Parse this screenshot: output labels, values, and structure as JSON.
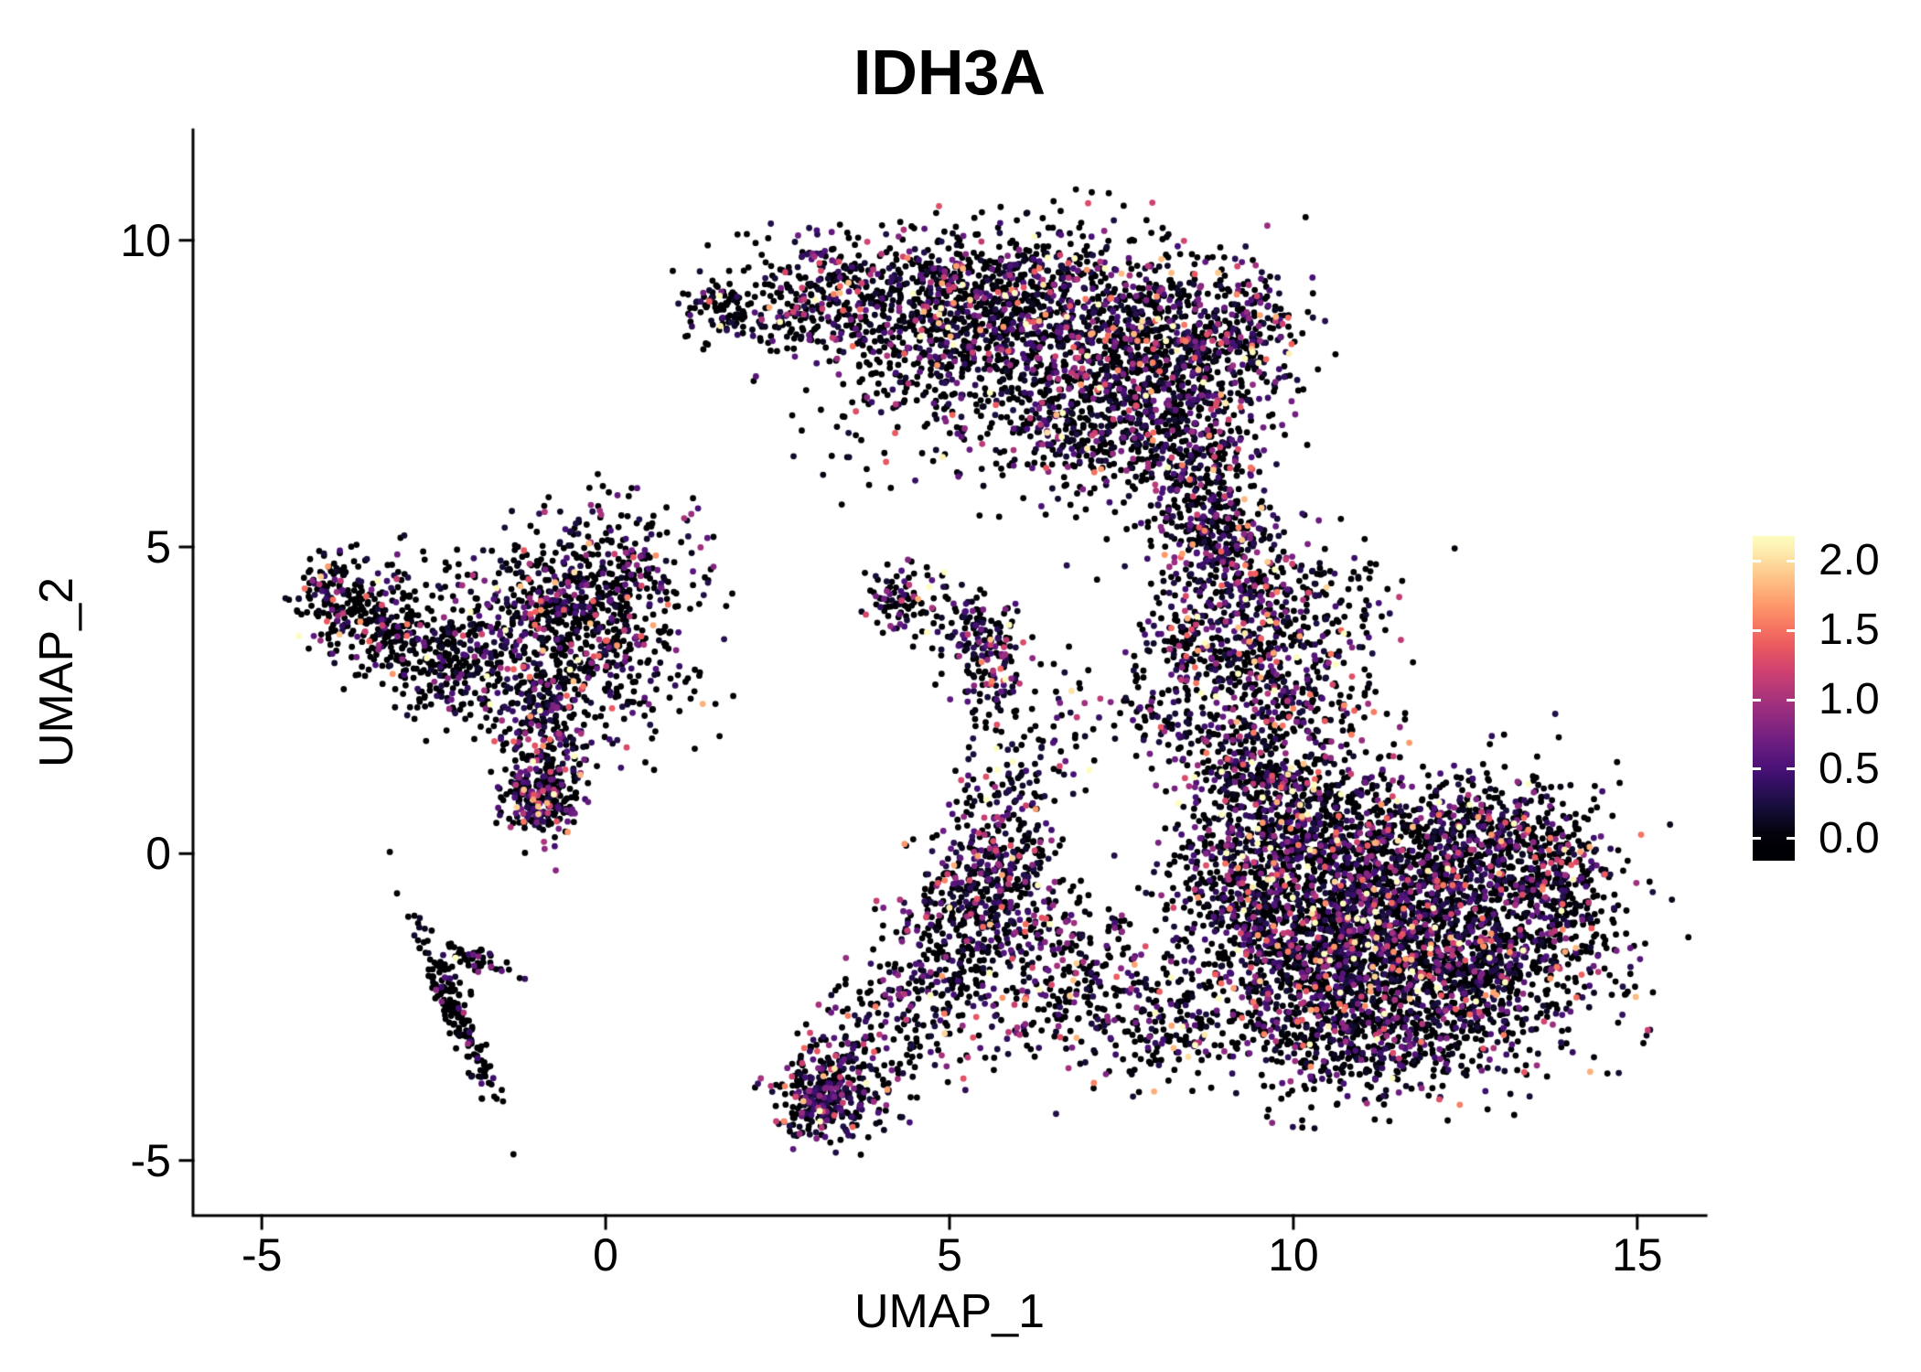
{
  "chart_data": {
    "type": "scatter",
    "title": "IDH3A",
    "xlabel": "UMAP_1",
    "ylabel": "UMAP_2",
    "xlim": [
      -6,
      16
    ],
    "ylim": [
      -5.9,
      11.8
    ],
    "grid": false,
    "background": "#ffffff",
    "axis_color": "#000000",
    "text_color": "#000000",
    "x_ticks": {
      "values": [
        -5,
        0,
        5,
        10,
        15
      ],
      "labels": [
        "-5",
        "0",
        "5",
        "10",
        "15"
      ]
    },
    "y_ticks": {
      "values": [
        -5,
        0,
        5,
        10
      ],
      "labels": [
        "-5",
        "0",
        "5",
        "10"
      ]
    },
    "legend_position": "right",
    "colorbar": {
      "labels": [
        "2.0",
        "1.5",
        "1.0",
        "0.5",
        "0.0"
      ],
      "label_values": [
        2.0,
        1.5,
        1.0,
        0.5,
        0.0
      ],
      "bar_domain": [
        -0.16,
        2.18
      ],
      "value_min": 0,
      "value_max": 2.15,
      "colormap_name": "magma",
      "colormap": [
        "#000004",
        "#180f3d",
        "#440f76",
        "#721f81",
        "#9e2f7f",
        "#cd4071",
        "#f1605d",
        "#fd9668",
        "#feca8d",
        "#fcfdbf"
      ]
    },
    "points": {
      "total": 13790,
      "radius_px": 3.4,
      "seed": 42,
      "value_distribution": {
        "zero_default": 0.55,
        "exp_scale": 0.55
      },
      "clusters": [
        {
          "name": "crescent-left-arm",
          "cx": 3.9,
          "cy": 9.2,
          "sx": 1.1,
          "sy": 0.5,
          "n": 450,
          "zf": 0.6
        },
        {
          "name": "crescent-left-tip",
          "cx": 1.45,
          "cy": 8.85,
          "sx": 0.3,
          "sy": 0.2,
          "n": 45,
          "zf": 0.6
        },
        {
          "name": "crescent-upper-left",
          "cx": 2.4,
          "cy": 8.9,
          "sx": 0.55,
          "sy": 0.35,
          "n": 90,
          "zf": 0.65
        },
        {
          "name": "crescent-core",
          "cx": 6.2,
          "cy": 8.7,
          "sx": 1.2,
          "sy": 0.75,
          "n": 1100,
          "zf": 0.52
        },
        {
          "name": "crescent-right",
          "cx": 8.2,
          "cy": 8.1,
          "sx": 0.8,
          "sy": 0.8,
          "n": 650,
          "zf": 0.52
        },
        {
          "name": "crescent-lower",
          "cx": 7.2,
          "cy": 7.0,
          "sx": 0.9,
          "sy": 0.65,
          "n": 480,
          "zf": 0.5
        },
        {
          "name": "crescent-lower-tail",
          "cx": 8.7,
          "cy": 6.1,
          "sx": 0.5,
          "sy": 0.75,
          "n": 280,
          "zf": 0.5
        },
        {
          "name": "crescent-right-tip",
          "cx": 9.35,
          "cy": 8.5,
          "sx": 0.35,
          "sy": 0.45,
          "n": 140,
          "zf": 0.55
        },
        {
          "name": "crescent-under-fringe",
          "cx": 4.6,
          "cy": 8.0,
          "sx": 1.1,
          "sy": 0.7,
          "n": 160,
          "zf": 0.62
        },
        {
          "name": "crescent-stray-below",
          "cx": 4.3,
          "cy": 7.0,
          "sx": 0.9,
          "sy": 0.55,
          "n": 45,
          "zf": 0.7
        },
        {
          "name": "band-upper",
          "cx": 8.8,
          "cy": 5.3,
          "sx": 0.4,
          "sy": 0.5,
          "n": 130,
          "zf": 0.5
        },
        {
          "name": "band-mid",
          "cx": 9.2,
          "cy": 4.4,
          "sx": 0.5,
          "sy": 0.75,
          "n": 280,
          "zf": 0.45
        },
        {
          "name": "band-lower",
          "cx": 9.4,
          "cy": 2.9,
          "sx": 0.55,
          "sy": 0.75,
          "n": 300,
          "zf": 0.45
        },
        {
          "name": "band-left-bump",
          "cx": 8.35,
          "cy": 3.4,
          "sx": 0.3,
          "sy": 0.45,
          "n": 90,
          "zf": 0.5
        },
        {
          "name": "band-left-low",
          "cx": 8.1,
          "cy": 2.2,
          "sx": 0.35,
          "sy": 0.4,
          "n": 70,
          "zf": 0.5
        },
        {
          "name": "band-right-fringe",
          "cx": 10.1,
          "cy": 3.6,
          "sx": 0.4,
          "sy": 0.7,
          "n": 120,
          "zf": 0.55
        },
        {
          "name": "band-right-sparse",
          "cx": 10.8,
          "cy": 4.2,
          "sx": 0.5,
          "sy": 0.6,
          "n": 50,
          "zf": 0.6
        },
        {
          "name": "band-right-low-sparse",
          "cx": 10.5,
          "cy": 2.2,
          "sx": 0.6,
          "sy": 0.6,
          "n": 80,
          "zf": 0.55
        },
        {
          "name": "blob-core",
          "cx": 11.4,
          "cy": -0.5,
          "sx": 1.2,
          "sy": 0.85,
          "n": 1400,
          "zf": 0.55
        },
        {
          "name": "blob-lower",
          "cx": 12.2,
          "cy": -2.0,
          "sx": 1.1,
          "sy": 0.75,
          "n": 1100,
          "zf": 0.55
        },
        {
          "name": "blob-left",
          "cx": 10.2,
          "cy": -1.6,
          "sx": 0.8,
          "sy": 0.85,
          "n": 750,
          "zf": 0.55
        },
        {
          "name": "blob-upper-left",
          "cx": 10.0,
          "cy": 0.5,
          "sx": 0.75,
          "sy": 0.6,
          "n": 450,
          "zf": 0.5
        },
        {
          "name": "blob-right-edge",
          "cx": 13.8,
          "cy": -0.6,
          "sx": 0.5,
          "sy": 0.8,
          "n": 300,
          "zf": 0.6
        },
        {
          "name": "blob-bottom",
          "cx": 11.0,
          "cy": -3.1,
          "sx": 0.8,
          "sy": 0.45,
          "n": 300,
          "zf": 0.55
        },
        {
          "name": "blob-top-neck",
          "cx": 9.4,
          "cy": 1.4,
          "sx": 0.5,
          "sy": 0.55,
          "n": 220,
          "zf": 0.5
        },
        {
          "name": "blob-upper-right",
          "cx": 12.9,
          "cy": 0.3,
          "sx": 0.6,
          "sy": 0.5,
          "n": 250,
          "zf": 0.55
        },
        {
          "name": "blob-left-edge",
          "cx": 9.2,
          "cy": -0.6,
          "sx": 0.5,
          "sy": 0.8,
          "n": 250,
          "zf": 0.55
        },
        {
          "name": "left-band-top",
          "cx": -0.3,
          "cy": 4.35,
          "sx": 0.85,
          "sy": 0.45,
          "n": 420,
          "zf": 0.55
        },
        {
          "name": "left-mid",
          "cx": -0.7,
          "cy": 3.4,
          "sx": 0.7,
          "sy": 0.55,
          "n": 330,
          "zf": 0.6
        },
        {
          "name": "left-west-clump",
          "cx": -3.3,
          "cy": 3.9,
          "sx": 0.5,
          "sy": 0.45,
          "n": 260,
          "zf": 0.72
        },
        {
          "name": "left-west-tip",
          "cx": -4.0,
          "cy": 4.3,
          "sx": 0.25,
          "sy": 0.3,
          "n": 70,
          "zf": 0.6
        },
        {
          "name": "left-dark-clump",
          "cx": -2.4,
          "cy": 3.15,
          "sx": 0.45,
          "sy": 0.4,
          "n": 200,
          "zf": 0.75
        },
        {
          "name": "left-tail",
          "cx": -0.85,
          "cy": 1.7,
          "sx": 0.3,
          "sy": 0.7,
          "n": 260,
          "zf": 0.45
        },
        {
          "name": "left-tail-knob",
          "cx": -0.95,
          "cy": 0.95,
          "sx": 0.28,
          "sy": 0.28,
          "n": 160,
          "zf": 0.45
        },
        {
          "name": "left-inner-sparse",
          "cx": 0.3,
          "cy": 2.8,
          "sx": 0.7,
          "sy": 0.6,
          "n": 120,
          "zf": 0.6
        },
        {
          "name": "left-between",
          "cx": -1.6,
          "cy": 2.5,
          "sx": 0.5,
          "sy": 0.5,
          "n": 90,
          "zf": 0.62
        },
        {
          "name": "left-top-sparse",
          "cx": 0.2,
          "cy": 5.4,
          "sx": 0.55,
          "sy": 0.35,
          "n": 50,
          "zf": 0.6
        },
        {
          "name": "streak-main",
          "cx": -2.2,
          "cy": -2.5,
          "sx": 0.8,
          "sy": 0.1,
          "rot": -69,
          "n": 170,
          "zf": 0.85
        },
        {
          "name": "streak-fork",
          "cx": -1.9,
          "cy": -1.7,
          "sx": 0.3,
          "sy": 0.09,
          "rot": -25,
          "n": 50,
          "zf": 0.8
        },
        {
          "name": "isle-a",
          "cx": 4.35,
          "cy": 4.15,
          "sx": 0.3,
          "sy": 0.25,
          "n": 90,
          "zf": 0.5
        },
        {
          "name": "isle-b",
          "cx": 5.55,
          "cy": 3.2,
          "sx": 0.28,
          "sy": 0.5,
          "n": 160,
          "zf": 0.42
        },
        {
          "name": "isle-bridge",
          "cx": 5.0,
          "cy": 3.8,
          "sx": 0.35,
          "sy": 0.25,
          "n": 40,
          "zf": 0.55
        },
        {
          "name": "isle-east-sparse",
          "cx": 6.6,
          "cy": 2.4,
          "sx": 0.5,
          "sy": 0.45,
          "n": 40,
          "zf": 0.6
        },
        {
          "name": "south-blob",
          "cx": 5.6,
          "cy": -0.35,
          "sx": 0.45,
          "sy": 0.6,
          "n": 330,
          "zf": 0.45
        },
        {
          "name": "south-blob-lower",
          "cx": 5.15,
          "cy": -1.4,
          "sx": 0.5,
          "sy": 0.5,
          "n": 200,
          "zf": 0.5
        },
        {
          "name": "south-neck",
          "cx": 5.9,
          "cy": 0.9,
          "sx": 0.4,
          "sy": 0.6,
          "n": 110,
          "zf": 0.5
        },
        {
          "name": "south-tail-mid",
          "cx": 4.4,
          "cy": -2.6,
          "sx": 0.6,
          "sy": 0.5,
          "n": 170,
          "zf": 0.55
        },
        {
          "name": "south-tail-clump",
          "cx": 3.4,
          "cy": -3.7,
          "sx": 0.5,
          "sy": 0.45,
          "n": 260,
          "zf": 0.5
        },
        {
          "name": "south-tail-tip",
          "cx": 3.05,
          "cy": -4.1,
          "sx": 0.25,
          "sy": 0.25,
          "n": 150,
          "zf": 0.45
        },
        {
          "name": "south-east-scatter",
          "cx": 7.2,
          "cy": -2.4,
          "sx": 0.9,
          "sy": 0.6,
          "n": 260,
          "zf": 0.55
        },
        {
          "name": "south-east-mid",
          "cx": 6.6,
          "cy": -1.3,
          "sx": 0.5,
          "sy": 0.5,
          "n": 120,
          "zf": 0.55
        },
        {
          "name": "south-east-far",
          "cx": 8.3,
          "cy": -2.9,
          "sx": 0.5,
          "sy": 0.4,
          "n": 100,
          "zf": 0.6
        }
      ]
    }
  }
}
